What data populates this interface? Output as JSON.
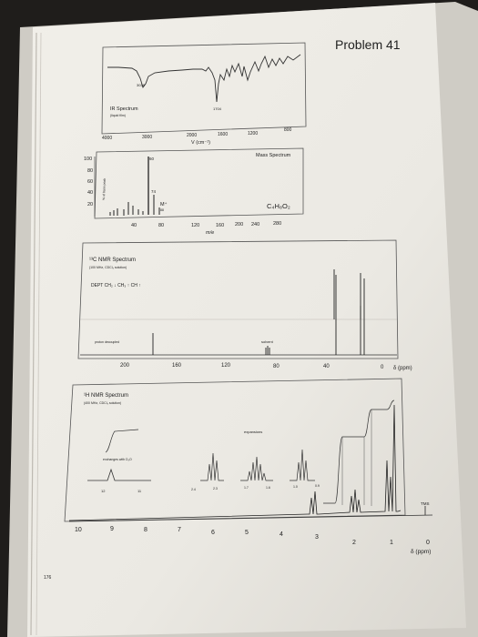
{
  "page": {
    "problem_title": "Problem 41",
    "page_number": "176"
  },
  "ir": {
    "title": "IR Spectrum",
    "subtitle": "(liquid film)",
    "peak_label_a": "3038",
    "peak_label_b": "1704",
    "x_ticks": [
      "4000",
      "3000",
      "2000",
      "1600",
      "1200",
      "800"
    ],
    "x_label": "V (cm⁻¹)"
  },
  "mass": {
    "title": "Mass Spectrum",
    "formula": "C₄H₈O₂",
    "y_ticks": [
      "100",
      "80",
      "60",
      "40",
      "20"
    ],
    "y_label": "% of base peak",
    "x_ticks": [
      "40",
      "80",
      "120",
      "160",
      "200",
      "240",
      "280"
    ],
    "x_label": "m/e",
    "peak_labels": [
      "60",
      "74"
    ],
    "molecular_ion_label": "M⁺",
    "molecular_ion_mass": "88"
  },
  "c13": {
    "title": "¹³C NMR Spectrum",
    "subtitle": "(100 MHz, CDCl₃ solution)",
    "dept_label": "DEPT  CH₂  ↓  CH₃  ↑  CH  ↑",
    "proton_decoupled_label": "proton decoupled",
    "solvent_label": "solvent",
    "x_ticks": [
      "200",
      "160",
      "120",
      "80",
      "40",
      "0"
    ],
    "x_unit": "δ (ppm)"
  },
  "h1": {
    "title": "¹H NMR Spectrum",
    "subtitle": "(400 MHz, CDCl₃ solution)",
    "exchanges_label": "exchanges with D₂O",
    "expansions_label": "expansions",
    "inset_ticks": [
      "12",
      "11"
    ],
    "expansion_ticks": [
      "2.4",
      "2.3",
      "1.7",
      "1.6",
      "1.0",
      "0.9"
    ],
    "tms_label": "TMS",
    "x_ticks": [
      "10",
      "9",
      "8",
      "7",
      "6",
      "5",
      "4",
      "3",
      "2",
      "1",
      "0"
    ],
    "x_unit": "δ (ppm)"
  }
}
